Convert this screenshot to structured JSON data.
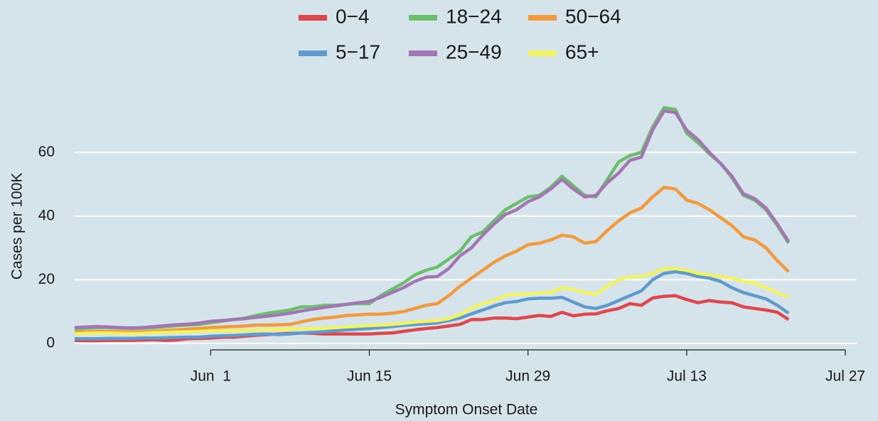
{
  "chart_data": {
    "type": "line",
    "x_label": "Symptom Onset Date",
    "y_label": "Cases per 100K",
    "x": [
      "May 20",
      "May 21",
      "May 22",
      "May 23",
      "May 24",
      "May 25",
      "May 26",
      "May 27",
      "May 28",
      "May 29",
      "May 30",
      "May 31",
      "Jun 1",
      "Jun 2",
      "Jun 3",
      "Jun 4",
      "Jun 5",
      "Jun 6",
      "Jun 7",
      "Jun 8",
      "Jun 9",
      "Jun 10",
      "Jun 11",
      "Jun 12",
      "Jun 13",
      "Jun 14",
      "Jun 15",
      "Jun 16",
      "Jun 17",
      "Jun 18",
      "Jun 19",
      "Jun 20",
      "Jun 21",
      "Jun 22",
      "Jun 23",
      "Jun 24",
      "Jun 25",
      "Jun 26",
      "Jun 27",
      "Jun 28",
      "Jun 29",
      "Jun 30",
      "Jul 1",
      "Jul 2",
      "Jul 3",
      "Jul 4",
      "Jul 5",
      "Jul 6",
      "Jul 7",
      "Jul 8",
      "Jul 9",
      "Jul 10",
      "Jul 11",
      "Jul 12",
      "Jul 13",
      "Jul 14",
      "Jul 15",
      "Jul 16",
      "Jul 17",
      "Jul 18",
      "Jul 19",
      "Jul 20",
      "Jul 21",
      "Jul 22"
    ],
    "series": [
      {
        "name": "0−4",
        "color": "#e0474c",
        "values": [
          1,
          0.9,
          0.9,
          1,
          1,
          1,
          1.1,
          1.2,
          1,
          1.1,
          1.5,
          1.6,
          1.7,
          2,
          2,
          2.3,
          2.6,
          2.8,
          3,
          3.2,
          3.3,
          3.2,
          3,
          3,
          3,
          3,
          3,
          3.2,
          3.3,
          3.8,
          4.3,
          4.7,
          5,
          5.5,
          6,
          7.5,
          7.5,
          8,
          8,
          7.8,
          8.3,
          8.8,
          8.5,
          9.8,
          8.7,
          9.2,
          9.3,
          10.3,
          11,
          12.5,
          12,
          14.3,
          14.8,
          15,
          13.8,
          12.8,
          13.5,
          13,
          12.8,
          11.5,
          11,
          10.5,
          9.8,
          7.5
        ]
      },
      {
        "name": "5−17",
        "color": "#5f9bcc",
        "values": [
          1.5,
          1.5,
          1.5,
          1.6,
          1.6,
          1.6,
          1.7,
          1.7,
          1.8,
          1.9,
          2,
          2,
          2.3,
          2.4,
          2.5,
          2.7,
          2.9,
          3,
          2.8,
          3,
          3.3,
          3.5,
          3.7,
          4,
          4.3,
          4.5,
          4.7,
          5,
          5.3,
          5.7,
          6,
          6.2,
          6.5,
          7.2,
          8,
          9.3,
          10.5,
          11.8,
          12.8,
          13.2,
          14,
          14.2,
          14.2,
          14.5,
          13,
          11.5,
          11,
          12,
          13.5,
          15,
          16.5,
          20,
          22,
          22.5,
          22,
          21,
          20.5,
          19.5,
          17.5,
          16,
          15,
          14,
          12,
          9.5
        ]
      },
      {
        "name": "18−24",
        "color": "#6bbf6b",
        "values": [
          4.5,
          4.8,
          5,
          5,
          4.8,
          4.7,
          4.8,
          5,
          5.3,
          5.6,
          5.8,
          6,
          6.5,
          7,
          7.5,
          8,
          8.8,
          9.5,
          10,
          10.5,
          11.5,
          11.5,
          12,
          12,
          12.3,
          12.5,
          12.5,
          15,
          17,
          19,
          21.5,
          23,
          24,
          26.5,
          29,
          33.5,
          35,
          38.5,
          42,
          44,
          46,
          46.5,
          49,
          52.5,
          49.5,
          46.5,
          46,
          51.5,
          57,
          59,
          60,
          68,
          74,
          73.5,
          66,
          63,
          59.5,
          56.5,
          52,
          46.5,
          45,
          42,
          37,
          31.5
        ]
      },
      {
        "name": "25−49",
        "color": "#a475b4",
        "values": [
          5,
          5.2,
          5.3,
          5.2,
          5,
          4.9,
          5,
          5.3,
          5.6,
          5.9,
          6.1,
          6.4,
          7,
          7.2,
          7.5,
          7.8,
          8.2,
          8.6,
          9,
          9.5,
          10.2,
          10.8,
          11.3,
          11.8,
          12.3,
          12.8,
          13.2,
          14.5,
          16,
          17.5,
          19.5,
          20.8,
          21,
          23.5,
          27.5,
          30,
          34,
          37.5,
          40.5,
          42,
          44.5,
          46,
          48.5,
          51.5,
          48.5,
          46,
          46.5,
          50.5,
          53.5,
          57.5,
          58.5,
          67,
          73,
          72.5,
          67,
          64,
          60,
          56.5,
          52.5,
          47,
          45.5,
          42.5,
          37.5,
          32
        ]
      },
      {
        "name": "50−64",
        "color": "#f39a3c",
        "values": [
          3.5,
          3.7,
          3.8,
          3.8,
          3.7,
          3.6,
          3.7,
          3.9,
          4.1,
          4.3,
          4.5,
          4.7,
          5,
          5.2,
          5.3,
          5.5,
          5.8,
          5.8,
          5.9,
          6,
          6.8,
          7.5,
          8,
          8.3,
          8.8,
          9,
          9.2,
          9.2,
          9.5,
          10,
          11,
          12,
          12.5,
          15,
          18,
          20.5,
          23,
          25.5,
          27.5,
          29,
          31,
          31.5,
          32.5,
          34,
          33.5,
          31.5,
          32,
          35.5,
          38.5,
          41,
          42.5,
          46,
          49,
          48.5,
          45,
          44,
          42,
          39.5,
          37,
          33.5,
          32.5,
          30,
          26,
          22.5
        ]
      },
      {
        "name": "65+",
        "color": "#f3f35e",
        "values": [
          3,
          3.2,
          3.3,
          3.3,
          3.2,
          3.1,
          3.2,
          3.4,
          3.5,
          3.6,
          3.7,
          3.8,
          4,
          4,
          4,
          4.1,
          4.2,
          4.3,
          4.4,
          4.5,
          4.6,
          4.7,
          4.8,
          5,
          5.2,
          5.4,
          5.6,
          5.8,
          6,
          6.3,
          6.7,
          7,
          7.2,
          7.8,
          9,
          11,
          12.5,
          13.5,
          15,
          15.5,
          15.5,
          15.8,
          16,
          17.5,
          17,
          16,
          15.5,
          18,
          20,
          21,
          21,
          22,
          23.5,
          23.5,
          23,
          22,
          21.5,
          21,
          20.5,
          19.5,
          19,
          17.5,
          16,
          14.5
        ]
      }
    ],
    "xlim": [
      "May 20",
      "Jul 28"
    ],
    "xticks": [
      {
        "value": "Jun 1",
        "label": "Jun  1"
      },
      "Jun 15",
      "Jun 29",
      "Jul 13",
      "Jul 27"
    ],
    "ylim": [
      -2,
      75
    ],
    "yticks": [
      0,
      20,
      40,
      60
    ],
    "grid": true,
    "legend": "top"
  }
}
